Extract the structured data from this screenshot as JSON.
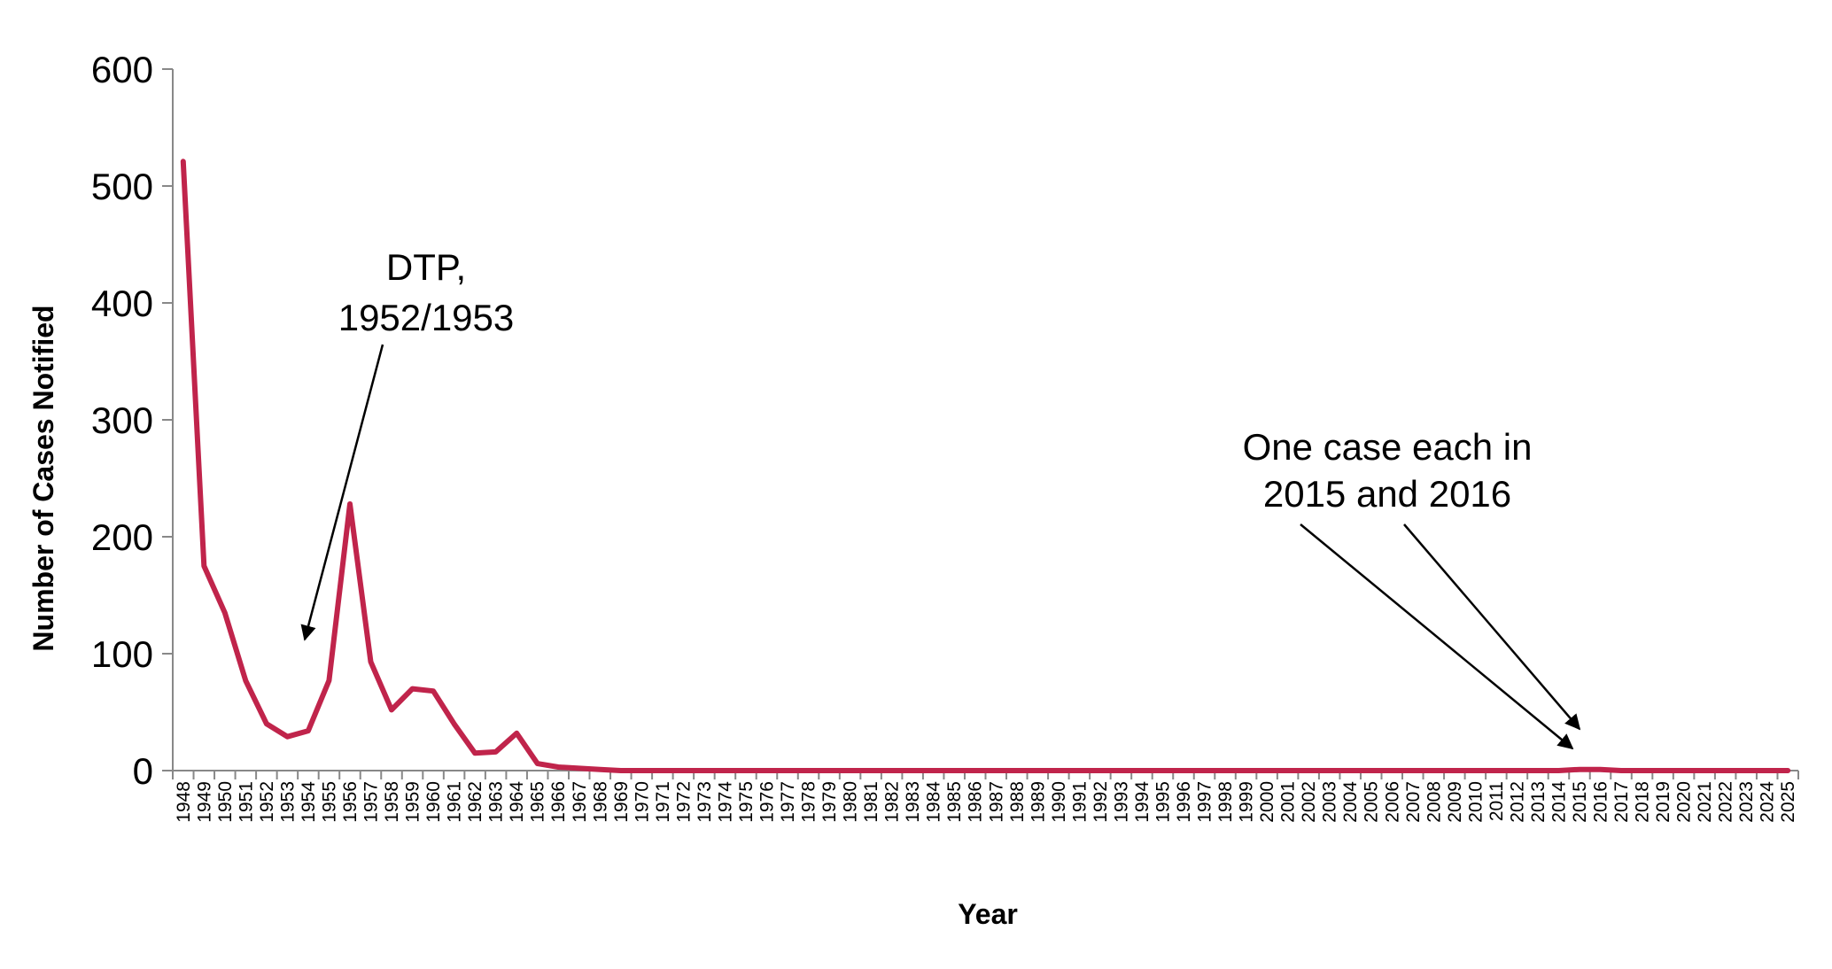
{
  "chart_data": {
    "type": "line",
    "title": "",
    "xlabel": "Year",
    "ylabel": "Number of Cases Notified",
    "ylim": [
      0,
      600
    ],
    "yticks": [
      0,
      100,
      200,
      300,
      400,
      500,
      600
    ],
    "grid": false,
    "legend": "none",
    "line_color": "#C0244B",
    "x": [
      1948,
      1949,
      1950,
      1951,
      1952,
      1953,
      1954,
      1955,
      1956,
      1957,
      1958,
      1959,
      1960,
      1961,
      1962,
      1963,
      1964,
      1965,
      1966,
      1967,
      1968,
      1969,
      1970,
      1971,
      1972,
      1973,
      1974,
      1975,
      1976,
      1977,
      1978,
      1979,
      1980,
      1981,
      1982,
      1983,
      1984,
      1985,
      1986,
      1987,
      1988,
      1989,
      1990,
      1991,
      1992,
      1993,
      1994,
      1995,
      1996,
      1997,
      1998,
      1999,
      2000,
      2001,
      2002,
      2003,
      2004,
      2005,
      2006,
      2007,
      2008,
      2009,
      2010,
      2011,
      2012,
      2013,
      2014,
      2015,
      2016,
      2017,
      2018,
      2019,
      2020,
      2021,
      2022,
      2023,
      2024,
      2025
    ],
    "series": [
      {
        "values": [
          521,
          175,
          135,
          77,
          40,
          29,
          34,
          77,
          228,
          93,
          52,
          70,
          68,
          40,
          15,
          16,
          32,
          6,
          3,
          2,
          1,
          0,
          0,
          0,
          0,
          0,
          0,
          0,
          0,
          0,
          0,
          0,
          0,
          0,
          0,
          0,
          0,
          0,
          0,
          0,
          0,
          0,
          0,
          0,
          0,
          0,
          0,
          0,
          0,
          0,
          0,
          0,
          0,
          0,
          0,
          0,
          0,
          0,
          0,
          0,
          0,
          0,
          0,
          0,
          0,
          0,
          0,
          1,
          1,
          0,
          0,
          0,
          0,
          0,
          0,
          0,
          0,
          0
        ]
      }
    ],
    "annotations": [
      {
        "lines": [
          "DTP,",
          "1952/1953"
        ]
      },
      {
        "lines": [
          "One case each in",
          "2015 and 2016"
        ]
      }
    ]
  }
}
